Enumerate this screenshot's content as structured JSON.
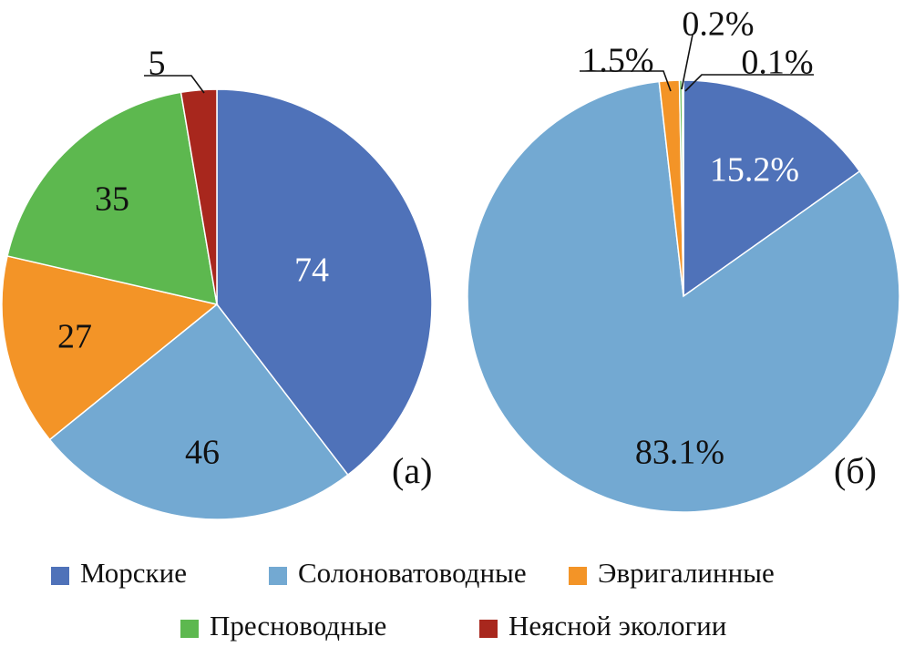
{
  "colors": {
    "marine": "#4F72B9",
    "brackish": "#73A9D2",
    "euryhaline": "#F39427",
    "freshwater": "#5DB84F",
    "unclear": "#A8271D"
  },
  "legend": [
    {
      "key": "marine",
      "label": "Морские"
    },
    {
      "key": "brackish",
      "label": "Солоноватоводные"
    },
    {
      "key": "euryhaline",
      "label": "Эвригалинные"
    },
    {
      "key": "freshwater",
      "label": "Пресноводные"
    },
    {
      "key": "unclear",
      "label": "Неясной экологии"
    }
  ],
  "chart_data": [
    {
      "type": "pie",
      "panel_label": "(а)",
      "slices": [
        {
          "key": "marine",
          "label": "74",
          "value": 74
        },
        {
          "key": "brackish",
          "label": "46",
          "value": 46
        },
        {
          "key": "euryhaline",
          "label": "27",
          "value": 27
        },
        {
          "key": "freshwater",
          "label": "35",
          "value": 35
        },
        {
          "key": "unclear",
          "label": "5",
          "value": 5
        }
      ]
    },
    {
      "type": "pie",
      "panel_label": "(б)",
      "slices": [
        {
          "key": "marine",
          "label": "15.2%",
          "value": 15.2
        },
        {
          "key": "brackish",
          "label": "83.1%",
          "value": 83.1
        },
        {
          "key": "euryhaline",
          "label": "1.5%",
          "value": 1.5
        },
        {
          "key": "freshwater",
          "label": "0.2%",
          "value": 0.2
        },
        {
          "key": "unclear",
          "label": "0.1%",
          "value": 0.1
        }
      ]
    }
  ]
}
